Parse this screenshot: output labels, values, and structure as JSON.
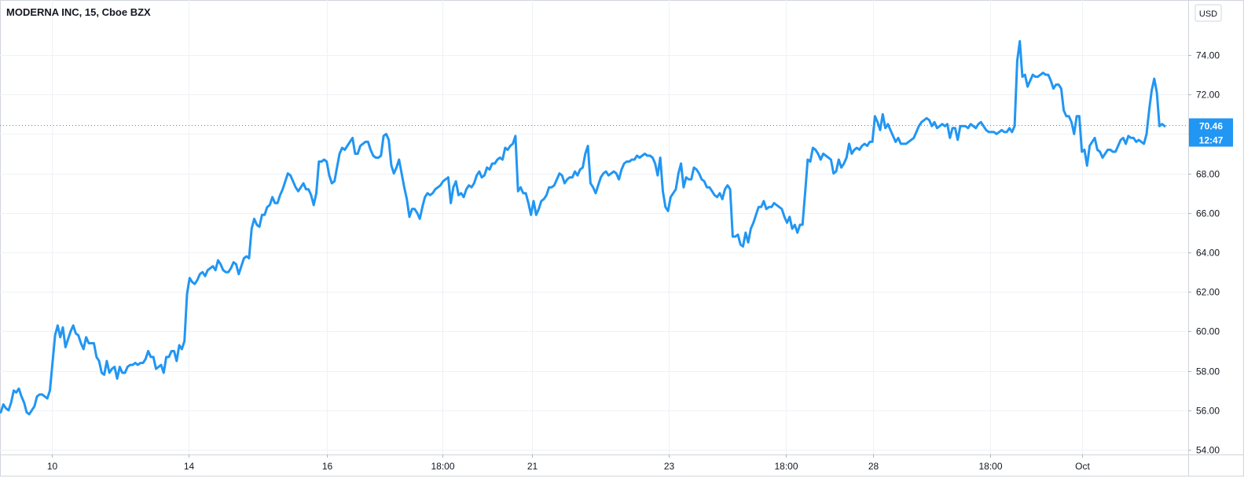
{
  "chart_data": {
    "type": "line",
    "title": "MODERNA INC, 15, Cboe BZX",
    "currency": "USD",
    "ylim": [
      54,
      76
    ],
    "y_ticks": [
      "74.00",
      "72.00",
      "70.00",
      "68.00",
      "66.00",
      "64.00",
      "62.00",
      "60.00",
      "58.00",
      "56.00",
      "54.00"
    ],
    "x_ticks": [
      "10",
      "14",
      "16",
      "18:00",
      "21",
      "23",
      "18:00",
      "28",
      "18:00",
      "Oct"
    ],
    "last_price": "70.46",
    "countdown": "12:47",
    "line_color": "#2196f3",
    "grid": true,
    "series": [
      {
        "values": [
          55.9,
          56.3,
          56.1,
          56.0,
          56.4,
          57.0,
          56.9,
          57.1,
          56.7,
          56.4,
          55.9,
          55.8,
          56.0,
          56.2,
          56.7,
          56.8,
          56.8,
          56.7,
          56.6,
          57.0,
          58.4,
          59.8,
          60.3,
          59.7,
          60.2,
          59.2,
          59.6,
          60.0,
          60.3,
          59.9,
          59.8,
          59.4,
          59.1,
          59.7,
          59.4,
          59.4,
          59.4,
          58.7,
          58.5,
          57.9,
          57.8,
          58.5,
          57.9,
          58.1,
          58.2,
          57.6,
          58.2,
          57.9,
          57.9,
          58.2,
          58.3,
          58.3,
          58.4,
          58.3,
          58.4,
          58.4,
          58.6,
          59.0,
          58.7,
          58.7,
          58.1,
          58.2,
          58.3,
          57.9,
          58.7,
          58.7,
          59.0,
          59.0,
          58.5,
          59.3,
          59.1,
          59.5,
          61.9,
          62.7,
          62.5,
          62.4,
          62.6,
          62.9,
          63.0,
          62.8,
          63.1,
          63.2,
          63.3,
          63.1,
          63.6,
          63.4,
          63.1,
          63.0,
          63.0,
          63.2,
          63.5,
          63.4,
          62.9,
          63.3,
          63.7,
          63.8,
          63.7,
          65.2,
          65.7,
          65.4,
          65.3,
          65.9,
          65.9,
          66.3,
          66.4,
          66.8,
          66.5,
          66.5,
          66.9,
          67.2,
          67.6,
          68.0,
          67.9,
          67.6,
          67.3,
          67.1,
          67.3,
          67.5,
          67.2,
          67.2,
          66.9,
          66.4,
          67.0,
          68.6,
          68.6,
          68.7,
          68.6,
          67.9,
          67.5,
          67.6,
          68.3,
          69.0,
          69.3,
          69.2,
          69.4,
          69.6,
          69.8,
          69.0,
          69.0,
          69.4,
          69.5,
          69.6,
          69.6,
          69.2,
          68.9,
          68.8,
          68.8,
          68.9,
          69.9,
          70.0,
          69.7,
          68.4,
          68.0,
          68.3,
          68.7,
          68.0,
          67.3,
          66.7,
          65.8,
          66.2,
          66.2,
          66.0,
          65.7,
          66.3,
          66.8,
          67.0,
          66.9,
          67.0,
          67.2,
          67.3,
          67.4,
          67.6,
          67.7,
          67.8,
          66.5,
          67.3,
          67.6,
          66.9,
          67.0,
          66.8,
          67.2,
          67.4,
          67.3,
          67.5,
          67.9,
          68.1,
          67.8,
          67.9,
          68.3,
          68.2,
          68.5,
          68.5,
          68.7,
          68.8,
          68.7,
          69.3,
          69.2,
          69.4,
          69.5,
          69.9,
          67.1,
          67.3,
          67.0,
          67.0,
          66.5,
          65.9,
          66.6,
          65.9,
          66.2,
          66.6,
          66.7,
          66.9,
          67.3,
          67.3,
          67.4,
          67.7,
          68.0,
          67.9,
          67.5,
          67.7,
          67.8,
          67.8,
          68.1,
          67.9,
          68.2,
          68.3,
          69.0,
          69.4,
          67.5,
          67.3,
          67.0,
          67.4,
          67.8,
          68.0,
          68.1,
          67.9,
          68.0,
          68.1,
          68.0,
          67.7,
          68.2,
          68.5,
          68.6,
          68.6,
          68.7,
          68.7,
          68.9,
          68.8,
          68.9,
          69.0,
          68.9,
          68.9,
          68.8,
          68.5,
          67.9,
          68.8,
          67.1,
          66.3,
          66.1,
          66.8,
          67.0,
          67.2,
          68.0,
          68.5,
          67.3,
          67.8,
          67.7,
          67.7,
          68.3,
          68.2,
          68.0,
          67.7,
          67.6,
          67.3,
          67.3,
          67.1,
          66.9,
          66.8,
          67.0,
          66.7,
          67.2,
          67.4,
          67.2,
          64.8,
          64.8,
          64.9,
          64.4,
          64.3,
          65.0,
          64.5,
          65.2,
          65.5,
          65.9,
          66.3,
          66.3,
          66.6,
          66.2,
          66.3,
          66.3,
          66.5,
          66.4,
          66.3,
          66.2,
          65.8,
          65.5,
          65.8,
          65.2,
          65.4,
          65.0,
          65.4,
          65.4,
          67.0,
          68.7,
          68.6,
          69.3,
          69.2,
          69.0,
          68.7,
          69.0,
          68.9,
          68.8,
          68.7,
          68.0,
          68.1,
          68.7,
          68.3,
          68.5,
          68.8,
          69.5,
          69.0,
          69.2,
          69.3,
          69.2,
          69.4,
          69.5,
          69.4,
          69.6,
          69.6,
          70.9,
          70.6,
          70.2,
          71.0,
          70.3,
          70.5,
          70.2,
          69.9,
          69.6,
          69.8,
          69.5,
          69.5,
          69.5,
          69.6,
          69.7,
          69.8,
          70.1,
          70.4,
          70.6,
          70.7,
          70.8,
          70.7,
          70.4,
          70.6,
          70.3,
          70.4,
          70.5,
          70.4,
          70.5,
          69.8,
          70.3,
          70.3,
          69.7,
          70.4,
          70.4,
          70.4,
          70.3,
          70.5,
          70.4,
          70.3,
          70.5,
          70.6,
          70.4,
          70.2,
          70.1,
          70.1,
          70.1,
          70.0,
          70.1,
          70.2,
          70.1,
          70.1,
          70.3,
          70.1,
          70.4,
          73.7,
          74.7,
          72.9,
          73.0,
          72.4,
          72.7,
          73.0,
          72.9,
          72.9,
          73.0,
          73.1,
          73.0,
          73.0,
          72.7,
          72.3,
          72.5,
          72.5,
          72.3,
          71.2,
          70.9,
          70.9,
          70.6,
          70.0,
          70.9,
          70.9,
          69.1,
          69.2,
          68.4,
          69.4,
          69.6,
          69.8,
          69.2,
          69.1,
          68.8,
          69.0,
          69.2,
          69.2,
          69.1,
          69.1,
          69.4,
          69.7,
          69.8,
          69.5,
          69.9,
          69.8,
          69.8,
          69.6,
          69.7,
          69.6,
          69.5,
          70.0,
          71.2,
          72.2,
          72.8,
          72.1,
          70.4,
          70.5,
          70.4
        ]
      }
    ]
  }
}
